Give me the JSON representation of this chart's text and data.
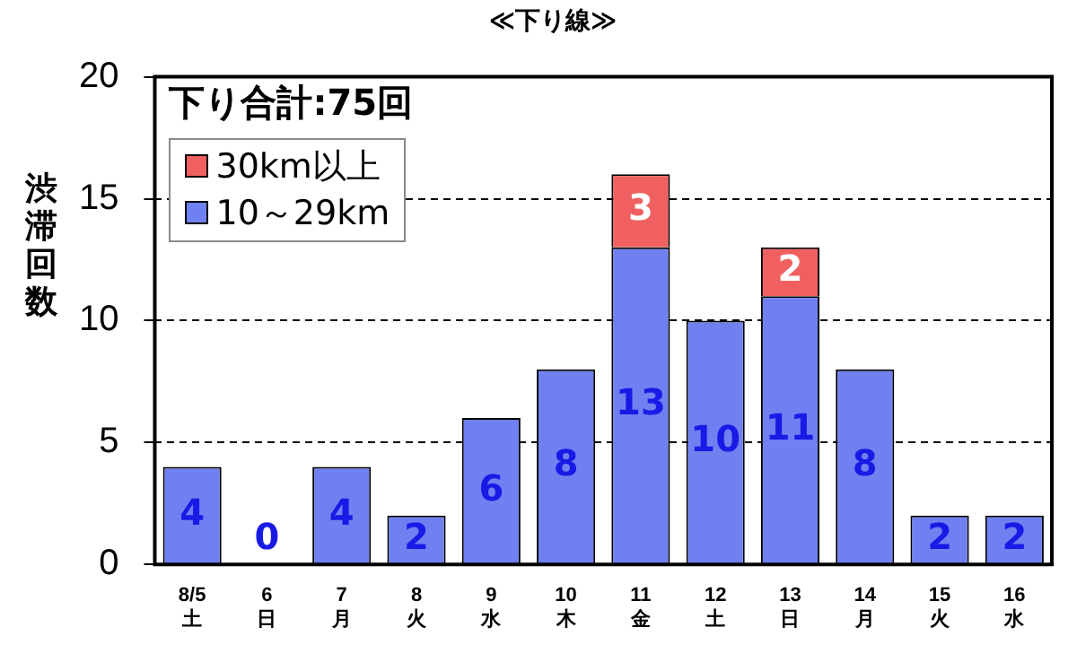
{
  "chart_data": {
    "type": "bar",
    "title": "≪下り線≫",
    "ylabel": "渋滞回数",
    "categories": [
      "8/5\n土",
      "6\n日",
      "7\n月",
      "8\n火",
      "9\n水",
      "10\n木",
      "11\n金",
      "12\n土",
      "13\n日",
      "14\n月",
      "15\n火",
      "16\n水"
    ],
    "series": [
      {
        "name": "10～29km",
        "color": "#7080f0",
        "values": [
          4,
          0,
          4,
          2,
          6,
          8,
          13,
          10,
          11,
          8,
          2,
          2
        ],
        "value_labels": [
          "4",
          "0",
          "4",
          "2",
          "6",
          "8",
          "13",
          "10",
          "11",
          "8",
          "2",
          "2"
        ]
      },
      {
        "name": "30km以上",
        "color": "#f06060",
        "values": [
          0,
          0,
          0,
          0,
          0,
          0,
          3,
          0,
          2,
          0,
          0,
          0
        ],
        "value_labels": [
          null,
          null,
          null,
          null,
          null,
          null,
          "3",
          null,
          "2",
          null,
          null,
          null
        ]
      }
    ],
    "stacked": true,
    "ylim": [
      0,
      20
    ],
    "yticks": [
      0,
      5,
      10,
      15,
      20
    ],
    "grid": "y",
    "legend": "top left",
    "annotations": [
      "下り合計:75回"
    ]
  }
}
